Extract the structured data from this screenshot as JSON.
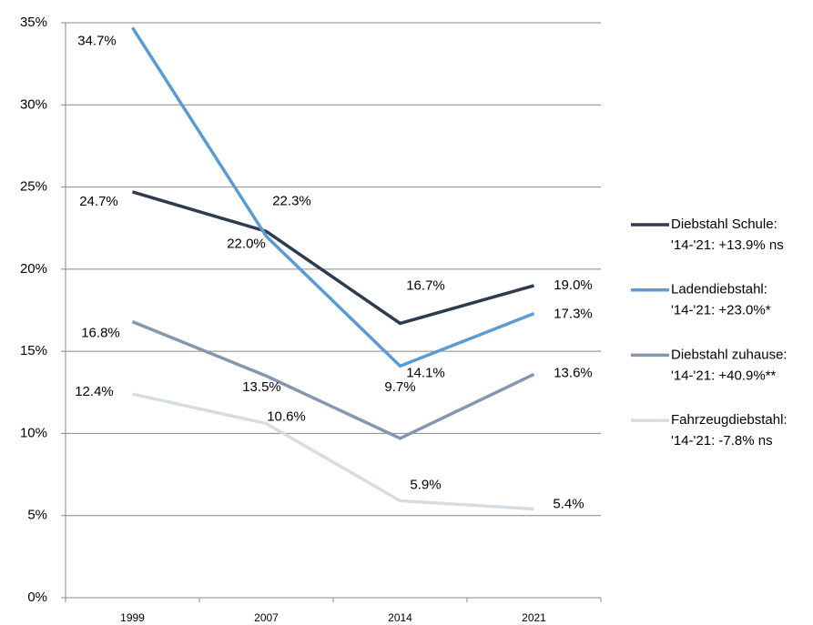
{
  "chart_data": {
    "type": "line",
    "categories": [
      "1999",
      "2007",
      "2014",
      "2021"
    ],
    "series": [
      {
        "name": "Diebstahl Schule:\n'14-'21: +13.9% ns",
        "color": "#2e3a4d",
        "values": [
          24.7,
          22.3,
          16.7,
          19.0
        ],
        "value_labels": [
          "24.7%",
          "22.3%",
          "16.7%",
          "19.0%"
        ]
      },
      {
        "name": "Ladendiebstahl:\n'14-'21: +23.0%*",
        "color": "#5b9bd5",
        "values": [
          34.7,
          22.0,
          14.1,
          17.3
        ],
        "value_labels": [
          "34.7%",
          "22.0%",
          "14.1%",
          "17.3%"
        ]
      },
      {
        "name": "Diebstahl zuhause:\n'14-'21: +40.9%**",
        "color": "#8496b0",
        "values": [
          16.8,
          13.5,
          9.7,
          13.6
        ],
        "value_labels": [
          "16.8%",
          "13.5%",
          "9.7%",
          "13.6%"
        ]
      },
      {
        "name": "Fahrzeugdiebstahl:\n'14-'21: -7.8% ns",
        "color": "#d6dce4",
        "values": [
          12.4,
          10.6,
          5.9,
          5.4
        ],
        "value_labels": [
          "12.4%",
          "10.6%",
          "5.9%",
          "5.4%"
        ]
      }
    ],
    "ylim": [
      0,
      35
    ],
    "yticks": [
      {
        "value": 0,
        "label": "0%"
      },
      {
        "value": 5,
        "label": "5%"
      },
      {
        "value": 10,
        "label": "10%"
      },
      {
        "value": 15,
        "label": "15%"
      },
      {
        "value": 20,
        "label": "20%"
      },
      {
        "value": 25,
        "label": "25%"
      },
      {
        "value": 30,
        "label": "30%"
      },
      {
        "value": 35,
        "label": "35%"
      }
    ],
    "grid": true,
    "legend": "right"
  }
}
